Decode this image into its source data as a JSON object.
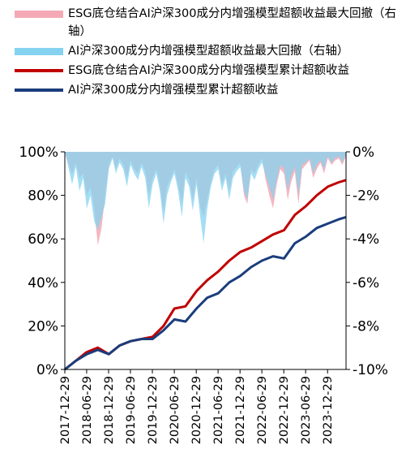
{
  "chart_data": {
    "type": "line",
    "title": "",
    "xlabel": "",
    "ylabel": "",
    "x_tick_labels": [
      "2017-12-29",
      "2018-06-29",
      "2018-12-29",
      "2019-06-29",
      "2019-12-29",
      "2020-06-29",
      "2020-12-29",
      "2021-06-29",
      "2021-12-29",
      "2022-06-29",
      "2022-12-29",
      "2023-06-29",
      "2023-12-29"
    ],
    "x_range": [
      "2017-12-29",
      "2024-05-31"
    ],
    "y_left": {
      "range": [
        0,
        100
      ],
      "ticks": [
        0,
        20,
        40,
        60,
        80,
        100
      ],
      "tick_labels": [
        "0%",
        "20%",
        "40%",
        "60%",
        "80%",
        "100%"
      ]
    },
    "y_right": {
      "range": [
        -10,
        0
      ],
      "ticks": [
        -10,
        -8,
        -6,
        -4,
        -2,
        0
      ],
      "tick_labels": [
        "-10%",
        "-8%",
        "-6%",
        "-4%",
        "-2%",
        "0%"
      ]
    },
    "grid": false,
    "legend_position": "top",
    "series": [
      {
        "name": "ESG底仓结合AI沪深300成分内增强模型超额收益最大回撤（右轴）",
        "kind": "area",
        "axis": "right",
        "color": "#f4a9b4",
        "x": [
          "2017-12-29",
          "2018-01-31",
          "2018-02-28",
          "2018-03-31",
          "2018-04-30",
          "2018-05-31",
          "2018-06-30",
          "2018-07-31",
          "2018-08-31",
          "2018-09-30",
          "2018-10-31",
          "2018-11-30",
          "2018-12-31",
          "2019-01-31",
          "2019-02-28",
          "2019-03-31",
          "2019-04-30",
          "2019-05-31",
          "2019-06-30",
          "2019-07-31",
          "2019-08-31",
          "2019-09-30",
          "2019-10-31",
          "2019-11-30",
          "2019-12-31",
          "2020-01-31",
          "2020-02-29",
          "2020-03-31",
          "2020-04-30",
          "2020-05-31",
          "2020-06-30",
          "2020-07-31",
          "2020-08-31",
          "2020-09-30",
          "2020-10-31",
          "2020-11-30",
          "2020-12-31",
          "2021-01-31",
          "2021-02-28",
          "2021-03-31",
          "2021-04-30",
          "2021-05-31",
          "2021-06-30",
          "2021-07-31",
          "2021-08-31",
          "2021-09-30",
          "2021-10-31",
          "2021-11-30",
          "2021-12-31",
          "2022-01-31",
          "2022-02-28",
          "2022-03-31",
          "2022-04-30",
          "2022-05-31",
          "2022-06-30",
          "2022-07-31",
          "2022-08-31",
          "2022-09-30",
          "2022-10-31",
          "2022-11-30",
          "2022-12-31",
          "2023-01-31",
          "2023-02-28",
          "2023-03-31",
          "2023-04-30",
          "2023-05-31",
          "2023-06-30",
          "2023-07-31",
          "2023-08-31",
          "2023-09-30",
          "2023-10-31",
          "2023-11-30",
          "2023-12-31",
          "2024-01-31",
          "2024-02-29",
          "2024-03-31",
          "2024-04-30",
          "2024-05-31"
        ],
        "values": [
          0,
          -0.6,
          -1.0,
          -0.5,
          -1.2,
          -1.0,
          -2.0,
          -1.6,
          -2.6,
          -4.3,
          -3.5,
          -2.0,
          -0.6,
          -0.2,
          -0.8,
          -0.3,
          -0.6,
          -1.2,
          -0.4,
          -0.8,
          -1.0,
          -0.5,
          -0.9,
          -2.0,
          -1.2,
          -0.8,
          -1.5,
          -2.8,
          -1.6,
          -1.2,
          -0.8,
          -1.5,
          -2.4,
          -0.9,
          -1.3,
          -2.2,
          -1.2,
          -2.5,
          -3.0,
          -2.2,
          -1.4,
          -0.8,
          -0.6,
          -1.5,
          -1.0,
          -1.8,
          -0.9,
          -0.7,
          -0.5,
          -2.0,
          -2.4,
          -0.8,
          -1.0,
          -0.6,
          -0.3,
          -1.3,
          -2.0,
          -2.6,
          -1.5,
          -0.8,
          -1.0,
          -2.2,
          -1.4,
          -0.9,
          -2.4,
          -0.8,
          -0.6,
          -0.4,
          -1.2,
          -0.8,
          -0.5,
          -1.0,
          -0.3,
          -0.6,
          -0.4,
          -0.3,
          -0.6,
          -0.2
        ]
      },
      {
        "name": "AI沪深300成分内增强模型超额收益最大回撤（右轴）",
        "kind": "area",
        "axis": "right",
        "color": "#85d3f0",
        "x": [
          "2017-12-29",
          "2018-01-31",
          "2018-02-28",
          "2018-03-31",
          "2018-04-30",
          "2018-05-31",
          "2018-06-30",
          "2018-07-31",
          "2018-08-31",
          "2018-09-30",
          "2018-10-31",
          "2018-11-30",
          "2018-12-31",
          "2019-01-31",
          "2019-02-28",
          "2019-03-31",
          "2019-04-30",
          "2019-05-31",
          "2019-06-30",
          "2019-07-31",
          "2019-08-31",
          "2019-09-30",
          "2019-10-31",
          "2019-11-30",
          "2019-12-31",
          "2020-01-31",
          "2020-02-29",
          "2020-03-31",
          "2020-04-30",
          "2020-05-31",
          "2020-06-30",
          "2020-07-31",
          "2020-08-31",
          "2020-09-30",
          "2020-10-31",
          "2020-11-30",
          "2020-12-31",
          "2021-01-31",
          "2021-02-28",
          "2021-03-31",
          "2021-04-30",
          "2021-05-31",
          "2021-06-30",
          "2021-07-31",
          "2021-08-31",
          "2021-09-30",
          "2021-10-31",
          "2021-11-30",
          "2021-12-31",
          "2022-01-31",
          "2022-02-28",
          "2022-03-31",
          "2022-04-30",
          "2022-05-31",
          "2022-06-30",
          "2022-07-31",
          "2022-08-31",
          "2022-09-30",
          "2022-10-31",
          "2022-11-30",
          "2022-12-31",
          "2023-01-31",
          "2023-02-28",
          "2023-03-31",
          "2023-04-30",
          "2023-05-31",
          "2023-06-30",
          "2023-07-31",
          "2023-08-31",
          "2023-09-30",
          "2023-10-31",
          "2023-11-30",
          "2023-12-31",
          "2024-01-31",
          "2024-02-29",
          "2024-03-31",
          "2024-04-30",
          "2024-05-31"
        ],
        "values": [
          0,
          -0.8,
          -1.5,
          -0.7,
          -1.8,
          -1.2,
          -2.6,
          -2.0,
          -3.2,
          -3.6,
          -3.0,
          -2.4,
          -0.8,
          -0.3,
          -1.0,
          -0.5,
          -0.8,
          -1.6,
          -0.6,
          -1.0,
          -1.3,
          -0.7,
          -1.2,
          -2.6,
          -1.5,
          -1.0,
          -1.8,
          -3.3,
          -2.0,
          -1.4,
          -1.0,
          -1.8,
          -3.0,
          -1.2,
          -1.6,
          -2.7,
          -1.5,
          -3.0,
          -4.2,
          -2.6,
          -1.6,
          -1.0,
          -0.8,
          -1.8,
          -1.2,
          -2.2,
          -1.2,
          -0.9,
          -0.7,
          -1.8,
          -2.2,
          -1.0,
          -1.3,
          -0.8,
          -0.5,
          -1.1,
          -1.6,
          -2.2,
          -1.3,
          -0.6,
          -0.8,
          -1.8,
          -1.1,
          -0.7,
          -2.0,
          -0.6,
          -0.5,
          -0.3,
          -1.0,
          -0.6,
          -0.4,
          -0.8,
          -0.2,
          -0.5,
          -0.3,
          -0.2,
          -0.5,
          -0.1
        ]
      },
      {
        "name": "ESG底仓结合AI沪深300成分内增强模型累计超额收益",
        "kind": "line",
        "axis": "left",
        "color": "#c00000",
        "x": [
          "2017-12-29",
          "2018-03-31",
          "2018-06-30",
          "2018-09-30",
          "2018-12-31",
          "2019-03-31",
          "2019-06-30",
          "2019-09-30",
          "2019-12-31",
          "2020-03-31",
          "2020-06-30",
          "2020-09-30",
          "2020-12-31",
          "2021-03-31",
          "2021-06-30",
          "2021-09-30",
          "2021-12-31",
          "2022-03-31",
          "2022-06-30",
          "2022-09-30",
          "2022-12-31",
          "2023-03-31",
          "2023-06-30",
          "2023-09-30",
          "2023-12-31",
          "2024-03-31",
          "2024-05-31"
        ],
        "values": [
          0,
          4,
          8,
          10,
          7,
          11,
          13,
          14,
          15,
          20,
          28,
          29,
          36,
          41,
          45,
          50,
          54,
          56,
          59,
          62,
          64,
          71,
          75,
          80,
          84,
          86,
          87
        ]
      },
      {
        "name": "AI沪深300成分内增强模型累计超额收益",
        "kind": "line",
        "axis": "left",
        "color": "#1a3d7c",
        "x": [
          "2017-12-29",
          "2018-03-31",
          "2018-06-30",
          "2018-09-30",
          "2018-12-31",
          "2019-03-31",
          "2019-06-30",
          "2019-09-30",
          "2019-12-31",
          "2020-03-31",
          "2020-06-30",
          "2020-09-30",
          "2020-12-31",
          "2021-03-31",
          "2021-06-30",
          "2021-09-30",
          "2021-12-31",
          "2022-03-31",
          "2022-06-30",
          "2022-09-30",
          "2022-12-31",
          "2023-03-31",
          "2023-06-30",
          "2023-09-30",
          "2023-12-31",
          "2024-03-31",
          "2024-05-31"
        ],
        "values": [
          0,
          4,
          7,
          9,
          7,
          11,
          13,
          14,
          14,
          18,
          23,
          22,
          28,
          33,
          35,
          40,
          43,
          47,
          50,
          52,
          51,
          58,
          61,
          65,
          67,
          69,
          70
        ]
      }
    ]
  }
}
